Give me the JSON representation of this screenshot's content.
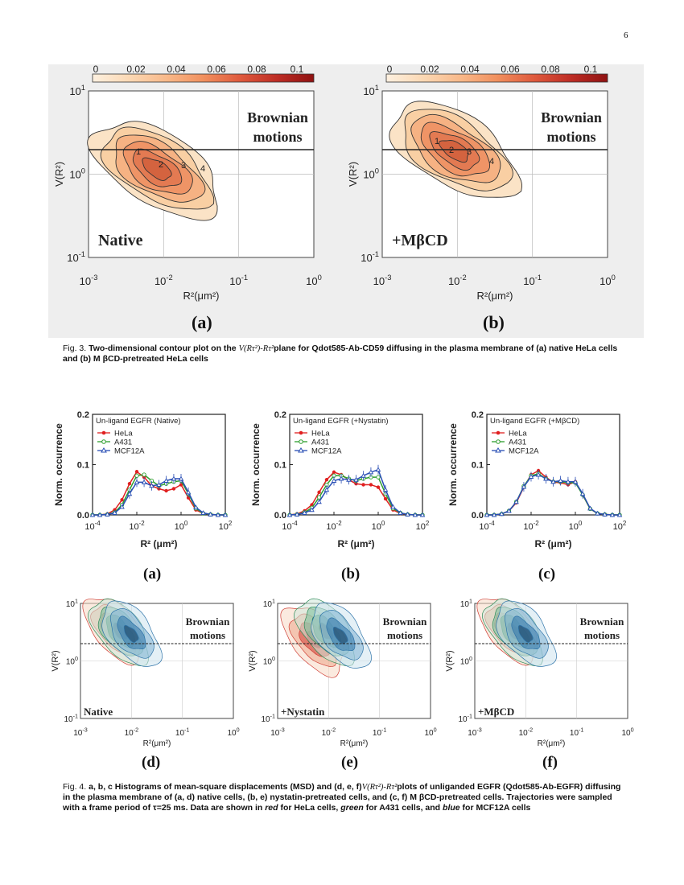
{
  "page": {
    "number": "6"
  },
  "fig3": {
    "colorbar": {
      "ticks": [
        "0",
        "0.02",
        "0.04",
        "0.06",
        "0.08",
        "0.1"
      ],
      "colors": [
        "#fdf0df",
        "#fbd8b4",
        "#f8b98a",
        "#f1905e",
        "#df5a3d",
        "#be2d25",
        "#8f1212"
      ]
    },
    "axes": {
      "x_ticks": [
        "10",
        "10",
        "10",
        "10"
      ],
      "x_exps": [
        "-3",
        "-2",
        "-1",
        "0"
      ],
      "y_ticks": [
        "10",
        "10",
        "10"
      ],
      "y_exps": [
        "1",
        "0",
        "-1"
      ],
      "xlabel": "R²(μm²)",
      "ylabel": "V(R²)",
      "regime_label_1": "Brownian",
      "regime_label_2": "motions"
    },
    "panels": [
      {
        "condition": "Native",
        "letter": "(a)",
        "peak_labels": [
          "1",
          "2",
          "3",
          "4"
        ]
      },
      {
        "condition": "+MβCD",
        "letter": "(b)",
        "peak_labels": [
          "1",
          "2",
          "3",
          "4"
        ]
      }
    ],
    "caption": {
      "prefix": "Fig. 3.",
      "bold_1": "Two-dimensional contour plot on the",
      "math": "V(Rτ²)-Rτ²",
      "bold_2": "plane for Qdot585-Ab-CD59 diffusing in the plasma membrane of (a) native HeLa cells and (b) M βCD-pretreated HeLa cells"
    }
  },
  "fig4": {
    "histograms": {
      "ylabel": "Norm. occurrence",
      "xlabel": "R² (μm²)",
      "y_ticks": [
        "0.0",
        "0.1",
        "0.2"
      ],
      "x_ticks": [
        "10",
        "10",
        "10",
        "10"
      ],
      "x_exps": [
        "-4",
        "-2",
        "0",
        "2"
      ],
      "series_colors": {
        "HeLa": "#e02020",
        "A431": "#2e9e2e",
        "MCF12A": "#2a4fb5"
      },
      "panels": [
        {
          "title": "Un-ligand EGFR (Native)",
          "letter": "(a)",
          "legend": [
            "HeLa",
            "A431",
            "MCF12A"
          ]
        },
        {
          "title": "Un-ligand EGFR (+Nystatin)",
          "letter": "(b)",
          "legend": [
            "HeLa",
            "A431",
            "MCF12A"
          ]
        },
        {
          "title": "Un-ligand EGFR (+MβCD)",
          "letter": "(c)",
          "legend": [
            "HeLa",
            "A431",
            "MCF12A"
          ]
        }
      ]
    },
    "chart_data": [
      {
        "type": "line",
        "title": "Un-ligand EGFR (Native)",
        "xlabel": "R² (μm²)",
        "ylabel": "Norm. occurrence",
        "xscale": "log",
        "xlim": [
          0.0001,
          100
        ],
        "ylim": [
          0,
          0.2
        ],
        "log10_x": [
          -4,
          -3.67,
          -3.33,
          -3,
          -2.67,
          -2.33,
          -2,
          -1.67,
          -1.33,
          -1,
          -0.67,
          -0.33,
          0,
          0.33,
          0.67,
          1,
          1.33,
          1.67,
          2
        ],
        "series": [
          {
            "name": "HeLa",
            "values": [
              0,
              0,
              0.002,
              0.01,
              0.03,
              0.062,
              0.086,
              0.075,
              0.058,
              0.052,
              0.048,
              0.052,
              0.06,
              0.034,
              0.01,
              0.003,
              0.001,
              0,
              0
            ]
          },
          {
            "name": "A431",
            "values": [
              0,
              0,
              0.001,
              0.005,
              0.02,
              0.05,
              0.078,
              0.08,
              0.068,
              0.058,
              0.062,
              0.066,
              0.068,
              0.042,
              0.013,
              0.003,
              0.001,
              0,
              0
            ]
          },
          {
            "name": "MCF12A",
            "values": [
              0,
              0,
              0.001,
              0.004,
              0.016,
              0.042,
              0.065,
              0.065,
              0.058,
              0.06,
              0.068,
              0.072,
              0.072,
              0.045,
              0.015,
              0.004,
              0.001,
              0,
              0
            ]
          }
        ]
      },
      {
        "type": "line",
        "title": "Un-ligand EGFR (+Nystatin)",
        "xlabel": "R² (μm²)",
        "ylabel": "Norm. occurrence",
        "xscale": "log",
        "xlim": [
          0.0001,
          100
        ],
        "ylim": [
          0,
          0.2
        ],
        "log10_x": [
          -4,
          -3.67,
          -3.33,
          -3,
          -2.67,
          -2.33,
          -2,
          -1.67,
          -1.33,
          -1,
          -0.67,
          -0.33,
          0,
          0.33,
          0.67,
          1,
          1.33,
          1.67,
          2
        ],
        "series": [
          {
            "name": "HeLa",
            "values": [
              0,
              0.002,
              0.008,
              0.02,
              0.045,
              0.07,
              0.085,
              0.08,
              0.07,
              0.062,
              0.06,
              0.06,
              0.055,
              0.032,
              0.01,
              0.003,
              0.001,
              0,
              0
            ]
          },
          {
            "name": "A431",
            "values": [
              0,
              0.001,
              0.005,
              0.014,
              0.035,
              0.06,
              0.078,
              0.078,
              0.072,
              0.068,
              0.072,
              0.075,
              0.075,
              0.042,
              0.013,
              0.004,
              0.001,
              0,
              0
            ]
          },
          {
            "name": "MCF12A",
            "values": [
              0,
              0.001,
              0.004,
              0.01,
              0.026,
              0.05,
              0.068,
              0.072,
              0.07,
              0.07,
              0.078,
              0.085,
              0.09,
              0.05,
              0.016,
              0.004,
              0.001,
              0,
              0
            ]
          }
        ]
      },
      {
        "type": "line",
        "title": "Un-ligand EGFR (+MβCD)",
        "xlabel": "R² (μm²)",
        "ylabel": "Norm. occurrence",
        "xscale": "log",
        "xlim": [
          0.0001,
          100
        ],
        "ylim": [
          0,
          0.2
        ],
        "log10_x": [
          -4,
          -3.67,
          -3.33,
          -3,
          -2.67,
          -2.33,
          -2,
          -1.67,
          -1.33,
          -1,
          -0.67,
          -0.33,
          0,
          0.33,
          0.67,
          1,
          1.33,
          1.67,
          2
        ],
        "series": [
          {
            "name": "HeLa",
            "values": [
              0,
              0,
              0.002,
              0.008,
              0.024,
              0.055,
              0.08,
              0.088,
              0.075,
              0.065,
              0.064,
              0.06,
              0.066,
              0.04,
              0.012,
              0.003,
              0.001,
              0,
              0
            ]
          },
          {
            "name": "A431",
            "values": [
              0,
              0,
              0.002,
              0.008,
              0.026,
              0.057,
              0.078,
              0.082,
              0.072,
              0.066,
              0.066,
              0.064,
              0.064,
              0.04,
              0.012,
              0.003,
              0.001,
              0,
              0
            ]
          },
          {
            "name": "MCF12A",
            "values": [
              0,
              0,
              0.002,
              0.008,
              0.026,
              0.056,
              0.076,
              0.08,
              0.072,
              0.066,
              0.068,
              0.066,
              0.066,
              0.042,
              0.013,
              0.003,
              0.001,
              0,
              0
            ]
          }
        ]
      }
    ],
    "contours": {
      "panels": [
        {
          "condition": "Native",
          "letter": "(d)"
        },
        {
          "condition": "+Nystatin",
          "letter": "(e)"
        },
        {
          "condition": "+MβCD",
          "letter": "(f)"
        }
      ]
    },
    "caption": {
      "prefix": "Fig. 4.",
      "text_1": "a, b, c Histograms of mean-square displacements (MSD) and (d, e, f)",
      "math": "V(Rτ²)-Rτ²",
      "text_2": "plots of unliganded EGFR (Qdot585-Ab-EGFR) diffusing in the plasma membrane of (a, d) native cells, (b, e) nystatin-pretreated cells, and (c, f) M βCD-pretreated cells. Trajectories were sampled with a frame period of τ=25 ms. Data are shown in",
      "red": "red",
      "text_3": "for HeLa cells,",
      "green": "green",
      "text_4": "for A431 cells, and",
      "blue": "blue",
      "text_5": "for MCF12A cells"
    }
  }
}
